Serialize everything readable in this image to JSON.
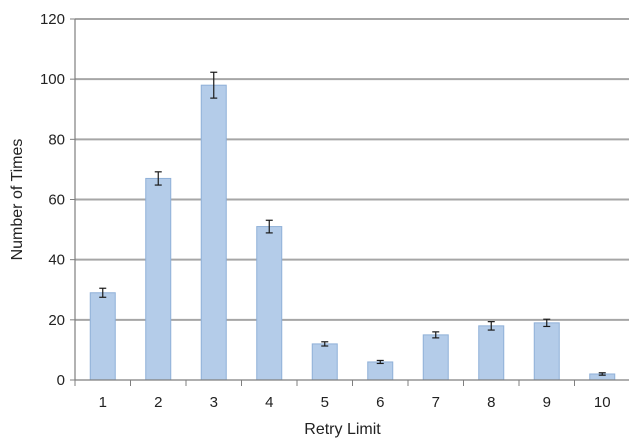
{
  "chart_data": {
    "type": "bar",
    "title": "",
    "xlabel": "Retry Limit",
    "ylabel": "Number of Times",
    "categories": [
      "1",
      "2",
      "3",
      "4",
      "5",
      "6",
      "7",
      "8",
      "9",
      "10"
    ],
    "values": [
      29,
      67,
      98,
      51,
      12,
      6,
      15,
      18,
      19,
      2
    ],
    "error_bars": [
      1.5,
      2.2,
      4.3,
      2.1,
      0.7,
      0.5,
      1.0,
      1.4,
      1.2,
      0.4
    ],
    "ylim": [
      0,
      120
    ],
    "yticks": [
      0,
      20,
      40,
      60,
      80,
      100,
      120
    ],
    "grid": "horizontal",
    "legend": "none",
    "colors": {
      "bar_fill": "#b4cce9",
      "bar_edge": "#8fb0d8",
      "grid": "#a6a6a6",
      "axis": "#7f7f7f",
      "error_bar": "#1a1a1a"
    }
  }
}
